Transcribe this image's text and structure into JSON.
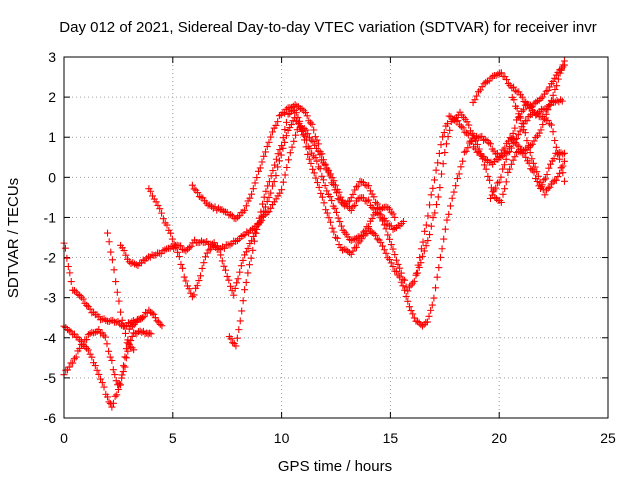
{
  "chart_data": {
    "type": "scatter",
    "title": "Day 012 of 2021, Sidereal Day-to-day VTEC variation (SDTVAR) for receiver invr",
    "xlabel": "GPS time / hours",
    "ylabel": "SDTVAR / TECUs",
    "xlim": [
      0,
      25
    ],
    "ylim": [
      -6,
      3
    ],
    "xticks": [
      "0",
      "5",
      "10",
      "15",
      "20",
      "25"
    ],
    "yticks": [
      "-6",
      "-5",
      "-4",
      "-3",
      "-2",
      "-1",
      "0",
      "1",
      "2",
      "3"
    ],
    "grid": true,
    "marker": "+",
    "series_color": "#ff0000",
    "tracks": [
      [
        [
          0.0,
          -1.6
        ],
        [
          0.2,
          -2.2
        ],
        [
          0.4,
          -2.8
        ],
        [
          0.8,
          -3.0
        ],
        [
          1.2,
          -3.3
        ],
        [
          1.6,
          -3.5
        ],
        [
          2.0,
          -3.6
        ],
        [
          2.4,
          -3.6
        ],
        [
          2.8,
          -3.7
        ],
        [
          3.2,
          -3.6
        ],
        [
          3.6,
          -3.5
        ],
        [
          3.9,
          -3.3
        ],
        [
          4.2,
          -3.5
        ],
        [
          4.5,
          -3.7
        ]
      ],
      [
        [
          0.0,
          -3.7
        ],
        [
          0.4,
          -3.9
        ],
        [
          0.8,
          -4.1
        ],
        [
          1.2,
          -4.4
        ],
        [
          1.6,
          -4.9
        ],
        [
          2.0,
          -5.5
        ],
        [
          2.2,
          -5.7
        ],
        [
          2.5,
          -5.3
        ],
        [
          2.8,
          -4.7
        ],
        [
          3.0,
          -4.2
        ],
        [
          3.2,
          -3.9
        ],
        [
          3.5,
          -3.8
        ],
        [
          3.8,
          -3.9
        ],
        [
          4.0,
          -3.9
        ]
      ],
      [
        [
          0.0,
          -4.9
        ],
        [
          0.4,
          -4.6
        ],
        [
          0.8,
          -4.2
        ],
        [
          1.2,
          -3.9
        ],
        [
          1.6,
          -3.8
        ],
        [
          1.9,
          -4.0
        ],
        [
          2.2,
          -4.6
        ],
        [
          2.4,
          -5.1
        ],
        [
          2.6,
          -5.2
        ],
        [
          2.8,
          -4.5
        ],
        [
          3.0,
          -3.8
        ],
        [
          3.3,
          -3.6
        ],
        [
          3.6,
          -3.5
        ]
      ],
      [
        [
          2.0,
          -1.4
        ],
        [
          2.3,
          -2.3
        ],
        [
          2.6,
          -3.4
        ],
        [
          2.9,
          -4.1
        ],
        [
          3.2,
          -4.3
        ]
      ],
      [
        [
          2.6,
          -1.7
        ],
        [
          3.0,
          -2.1
        ],
        [
          3.4,
          -2.2
        ],
        [
          3.8,
          -2.0
        ],
        [
          4.3,
          -1.9
        ],
        [
          4.8,
          -1.8
        ],
        [
          5.2,
          -1.7
        ],
        [
          5.6,
          -1.8
        ],
        [
          6.0,
          -1.6
        ],
        [
          6.4,
          -1.6
        ],
        [
          6.8,
          -1.7
        ],
        [
          7.2,
          -1.8
        ],
        [
          7.8,
          -1.6
        ],
        [
          8.4,
          -1.4
        ],
        [
          9.0,
          -1.1
        ],
        [
          9.5,
          -0.8
        ],
        [
          10.0,
          -0.3
        ],
        [
          10.4,
          0.6
        ],
        [
          10.8,
          1.3
        ],
        [
          11.2,
          1.1
        ],
        [
          11.6,
          0.7
        ],
        [
          12.0,
          0.3
        ],
        [
          12.4,
          -0.1
        ],
        [
          12.8,
          -0.6
        ],
        [
          13.2,
          -0.8
        ],
        [
          13.6,
          -0.5
        ],
        [
          14.0,
          -0.6
        ],
        [
          14.4,
          -0.9
        ],
        [
          14.8,
          -1.1
        ],
        [
          15.2,
          -1.3
        ],
        [
          15.6,
          -1.1
        ]
      ],
      [
        [
          3.9,
          -0.3
        ],
        [
          4.4,
          -0.8
        ],
        [
          4.9,
          -1.4
        ],
        [
          5.3,
          -2.0
        ],
        [
          5.6,
          -2.6
        ],
        [
          5.9,
          -3.0
        ],
        [
          6.2,
          -2.6
        ],
        [
          6.5,
          -2.0
        ],
        [
          6.9,
          -1.6
        ],
        [
          7.2,
          -1.9
        ],
        [
          7.5,
          -2.5
        ],
        [
          7.8,
          -2.9
        ],
        [
          8.0,
          -2.5
        ],
        [
          8.3,
          -1.9
        ],
        [
          8.7,
          -1.5
        ],
        [
          9.1,
          -1.0
        ],
        [
          9.5,
          -0.4
        ],
        [
          9.9,
          0.4
        ],
        [
          10.3,
          1.2
        ],
        [
          10.6,
          1.5
        ],
        [
          11.0,
          1.1
        ],
        [
          11.3,
          0.7
        ],
        [
          11.7,
          0.3
        ],
        [
          12.0,
          -0.2
        ],
        [
          12.3,
          -0.6
        ],
        [
          12.6,
          -1.0
        ],
        [
          12.9,
          -1.4
        ],
        [
          13.2,
          -1.6
        ],
        [
          13.6,
          -1.5
        ],
        [
          14.0,
          -1.2
        ],
        [
          14.4,
          -0.8
        ],
        [
          14.8,
          -0.7
        ],
        [
          15.2,
          -1.0
        ]
      ],
      [
        [
          7.6,
          -4.0
        ],
        [
          7.9,
          -4.2
        ],
        [
          8.1,
          -3.6
        ],
        [
          8.3,
          -2.8
        ],
        [
          8.6,
          -2.0
        ],
        [
          8.9,
          -1.2
        ],
        [
          9.2,
          -0.5
        ],
        [
          9.6,
          0.2
        ],
        [
          10.0,
          0.8
        ],
        [
          10.3,
          1.6
        ],
        [
          10.6,
          1.7
        ],
        [
          10.9,
          1.3
        ],
        [
          11.2,
          0.6
        ],
        [
          11.5,
          0.1
        ],
        [
          11.8,
          -0.4
        ],
        [
          12.1,
          -0.9
        ],
        [
          12.4,
          -1.4
        ],
        [
          12.8,
          -1.8
        ],
        [
          13.2,
          -1.9
        ],
        [
          13.6,
          -1.6
        ],
        [
          14.0,
          -1.3
        ],
        [
          14.4,
          -1.5
        ],
        [
          14.8,
          -1.9
        ],
        [
          15.2,
          -2.3
        ],
        [
          15.5,
          -2.6
        ],
        [
          15.8,
          -3.1
        ],
        [
          16.1,
          -3.5
        ],
        [
          16.4,
          -3.7
        ],
        [
          16.7,
          -3.6
        ],
        [
          17.0,
          -3.0
        ],
        [
          17.3,
          -2.0
        ],
        [
          17.6,
          -1.1
        ],
        [
          18.0,
          -0.2
        ],
        [
          18.4,
          0.6
        ],
        [
          18.8,
          1.0
        ],
        [
          19.2,
          1.0
        ],
        [
          19.6,
          0.8
        ],
        [
          20.0,
          0.5
        ],
        [
          20.4,
          0.6
        ],
        [
          20.8,
          1.0
        ],
        [
          21.2,
          1.4
        ],
        [
          21.6,
          1.6
        ],
        [
          22.0,
          1.5
        ],
        [
          22.4,
          1.3
        ],
        [
          22.7,
          0.6
        ],
        [
          23.0,
          -0.1
        ]
      ],
      [
        [
          5.9,
          -0.2
        ],
        [
          6.3,
          -0.5
        ],
        [
          6.7,
          -0.7
        ],
        [
          7.1,
          -0.8
        ],
        [
          7.5,
          -0.9
        ],
        [
          7.9,
          -1.0
        ],
        [
          8.3,
          -0.8
        ],
        [
          8.7,
          -0.3
        ],
        [
          9.1,
          0.4
        ],
        [
          9.5,
          1.0
        ],
        [
          9.9,
          1.5
        ],
        [
          10.3,
          1.7
        ],
        [
          10.7,
          1.8
        ],
        [
          11.1,
          1.6
        ],
        [
          11.4,
          1.3
        ],
        [
          11.7,
          0.8
        ],
        [
          12.0,
          0.3
        ],
        [
          12.3,
          -0.1
        ],
        [
          12.6,
          -0.5
        ],
        [
          12.9,
          -0.7
        ],
        [
          13.2,
          -0.5
        ],
        [
          13.6,
          -0.1
        ],
        [
          14.0,
          -0.2
        ],
        [
          14.4,
          -0.7
        ],
        [
          14.8,
          -1.3
        ],
        [
          15.2,
          -1.9
        ],
        [
          15.5,
          -2.4
        ],
        [
          15.8,
          -2.8
        ],
        [
          16.1,
          -2.6
        ],
        [
          16.4,
          -2.1
        ],
        [
          16.8,
          -1.4
        ],
        [
          17.2,
          -0.5
        ],
        [
          17.5,
          0.6
        ],
        [
          17.8,
          1.4
        ],
        [
          18.2,
          1.6
        ],
        [
          18.6,
          1.3
        ],
        [
          19.0,
          0.8
        ],
        [
          19.4,
          0.2
        ],
        [
          19.8,
          -0.5
        ],
        [
          20.1,
          -0.6
        ],
        [
          20.4,
          0.1
        ],
        [
          20.8,
          0.6
        ],
        [
          21.2,
          0.7
        ],
        [
          21.6,
          0.9
        ],
        [
          22.0,
          1.3
        ],
        [
          22.4,
          1.9
        ],
        [
          22.8,
          2.6
        ],
        [
          23.0,
          2.9
        ]
      ],
      [
        [
          16.2,
          -2.4
        ],
        [
          16.5,
          -1.6
        ],
        [
          16.8,
          -0.7
        ],
        [
          17.1,
          0.2
        ],
        [
          17.4,
          1.0
        ],
        [
          17.7,
          1.5
        ],
        [
          18.1,
          1.4
        ],
        [
          18.5,
          1.1
        ],
        [
          18.9,
          0.7
        ],
        [
          19.3,
          0.5
        ],
        [
          19.7,
          0.3
        ],
        [
          20.1,
          0.6
        ],
        [
          20.5,
          1.0
        ],
        [
          20.9,
          0.8
        ],
        [
          21.3,
          0.4
        ],
        [
          21.6,
          0.1
        ],
        [
          21.9,
          -0.3
        ],
        [
          22.2,
          0.1
        ],
        [
          22.6,
          0.6
        ],
        [
          23.0,
          0.6
        ]
      ],
      [
        [
          18.8,
          1.9
        ],
        [
          19.3,
          2.3
        ],
        [
          19.7,
          2.5
        ],
        [
          20.1,
          2.6
        ],
        [
          20.5,
          2.3
        ],
        [
          20.9,
          2.1
        ],
        [
          21.3,
          1.8
        ],
        [
          21.7,
          1.6
        ],
        [
          22.1,
          1.7
        ],
        [
          22.5,
          1.9
        ],
        [
          22.9,
          1.9
        ]
      ],
      [
        [
          19.6,
          -0.5
        ],
        [
          20.0,
          -0.1
        ],
        [
          20.4,
          0.6
        ],
        [
          20.8,
          1.4
        ],
        [
          21.2,
          1.8
        ],
        [
          21.6,
          1.8
        ],
        [
          22.0,
          2.0
        ],
        [
          22.4,
          2.3
        ],
        [
          22.7,
          2.6
        ],
        [
          23.0,
          2.8
        ]
      ],
      [
        [
          20.6,
          2.0
        ],
        [
          20.9,
          1.6
        ],
        [
          21.2,
          1.1
        ],
        [
          21.5,
          0.5
        ],
        [
          21.8,
          0.0
        ],
        [
          22.1,
          -0.4
        ],
        [
          22.4,
          -0.2
        ],
        [
          22.7,
          0.0
        ],
        [
          23.0,
          0.4
        ]
      ]
    ]
  }
}
